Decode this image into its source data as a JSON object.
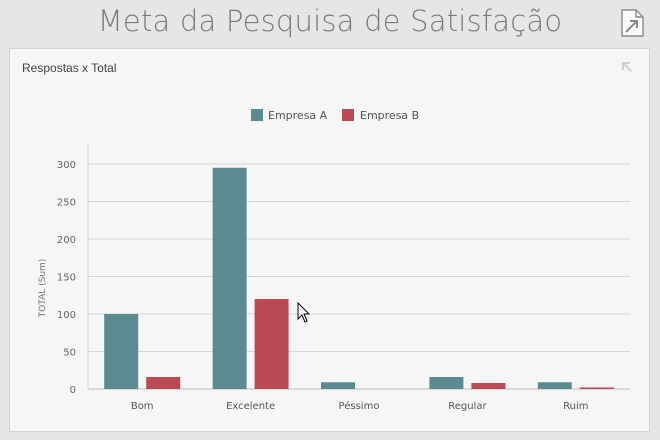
{
  "page": {
    "title": "Meta da Pesquisa de Satisfação"
  },
  "toolbar": {
    "export_icon": "export-icon"
  },
  "panel": {
    "title": "Respostas x Total",
    "maximize_icon": "maximize-arrow-icon"
  },
  "chart_data": {
    "type": "bar",
    "title": "",
    "xlabel": "",
    "ylabel": "TOTAL (Sum)",
    "categories": [
      "Bom",
      "Excelente",
      "Péssimo",
      "Regular",
      "Ruim"
    ],
    "series": [
      {
        "name": "Empresa A",
        "color": "#5b8b90",
        "values": [
          100,
          295,
          9,
          16,
          9
        ]
      },
      {
        "name": "Empresa B",
        "color": "#b94a54",
        "values": [
          16,
          120,
          0,
          8,
          2
        ]
      }
    ],
    "yticks": [
      0,
      50,
      100,
      150,
      200,
      250,
      300
    ],
    "ylim": [
      0,
      300
    ],
    "grid": true,
    "legend_position": "top-center"
  }
}
